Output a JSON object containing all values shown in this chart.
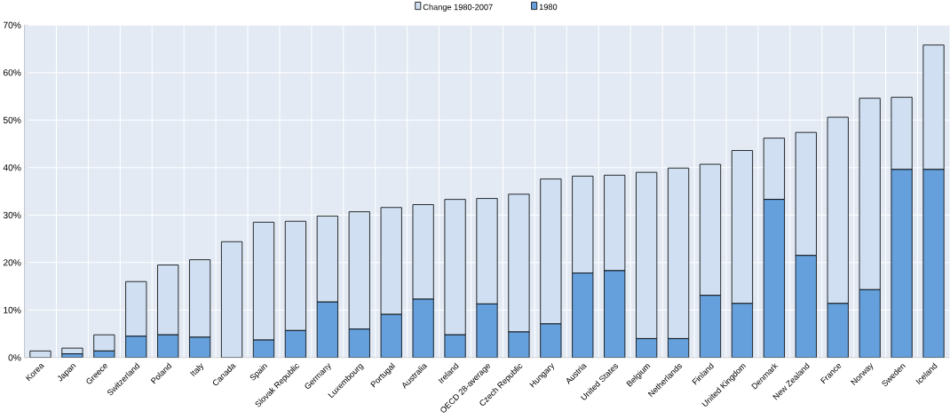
{
  "chart_data": {
    "type": "bar",
    "stacked": true,
    "grid": true,
    "legend": "top",
    "categories": [
      "Korea",
      "Japan",
      "Greece",
      "Switzerland",
      "Poland",
      "Italy",
      "Canada",
      "Spain",
      "Slovak Republic",
      "Germany",
      "Luxembourg",
      "Portugal",
      "Australia",
      "Ireland",
      "OECD 28-average",
      "Czech Republic",
      "Hungary",
      "Austria",
      "United States",
      "Belgium",
      "Netherlands",
      "Finland",
      "United Kingdom",
      "Denmark",
      "New Zealand",
      "France",
      "Norway",
      "Sweden",
      "Iceland"
    ],
    "series": [
      {
        "name": "1980",
        "color": "#65a0dc",
        "values": [
          0,
          0.8,
          1.4,
          4.5,
          4.8,
          4.3,
          0,
          3.7,
          5.7,
          11.7,
          6.0,
          9.1,
          12.3,
          4.8,
          11.3,
          5.4,
          7.1,
          17.8,
          18.3,
          4.0,
          4.0,
          13.1,
          11.4,
          33.3,
          21.5,
          11.4,
          14.3,
          39.6,
          39.6
        ]
      },
      {
        "name": "Change 1980-2007",
        "color": "#d0e0f2",
        "values": [
          1.4,
          1.2,
          3.4,
          11.5,
          14.7,
          16.3,
          24.4,
          24.8,
          23.0,
          18.1,
          24.7,
          22.5,
          19.9,
          28.5,
          22.2,
          29.0,
          30.5,
          20.4,
          20.1,
          35.0,
          35.9,
          27.6,
          32.2,
          12.9,
          25.9,
          39.2,
          40.3,
          15.2,
          26.2
        ]
      }
    ],
    "ylim": [
      0,
      70
    ],
    "yticks": [
      {
        "value": 0,
        "label": "0%"
      },
      {
        "value": 10,
        "label": "10%"
      },
      {
        "value": 20,
        "label": "20%"
      },
      {
        "value": 30,
        "label": "30%"
      },
      {
        "value": 40,
        "label": "40%"
      },
      {
        "value": 50,
        "label": "50%"
      },
      {
        "value": 60,
        "label": "60%"
      },
      {
        "value": 70,
        "label": "70%"
      }
    ]
  }
}
